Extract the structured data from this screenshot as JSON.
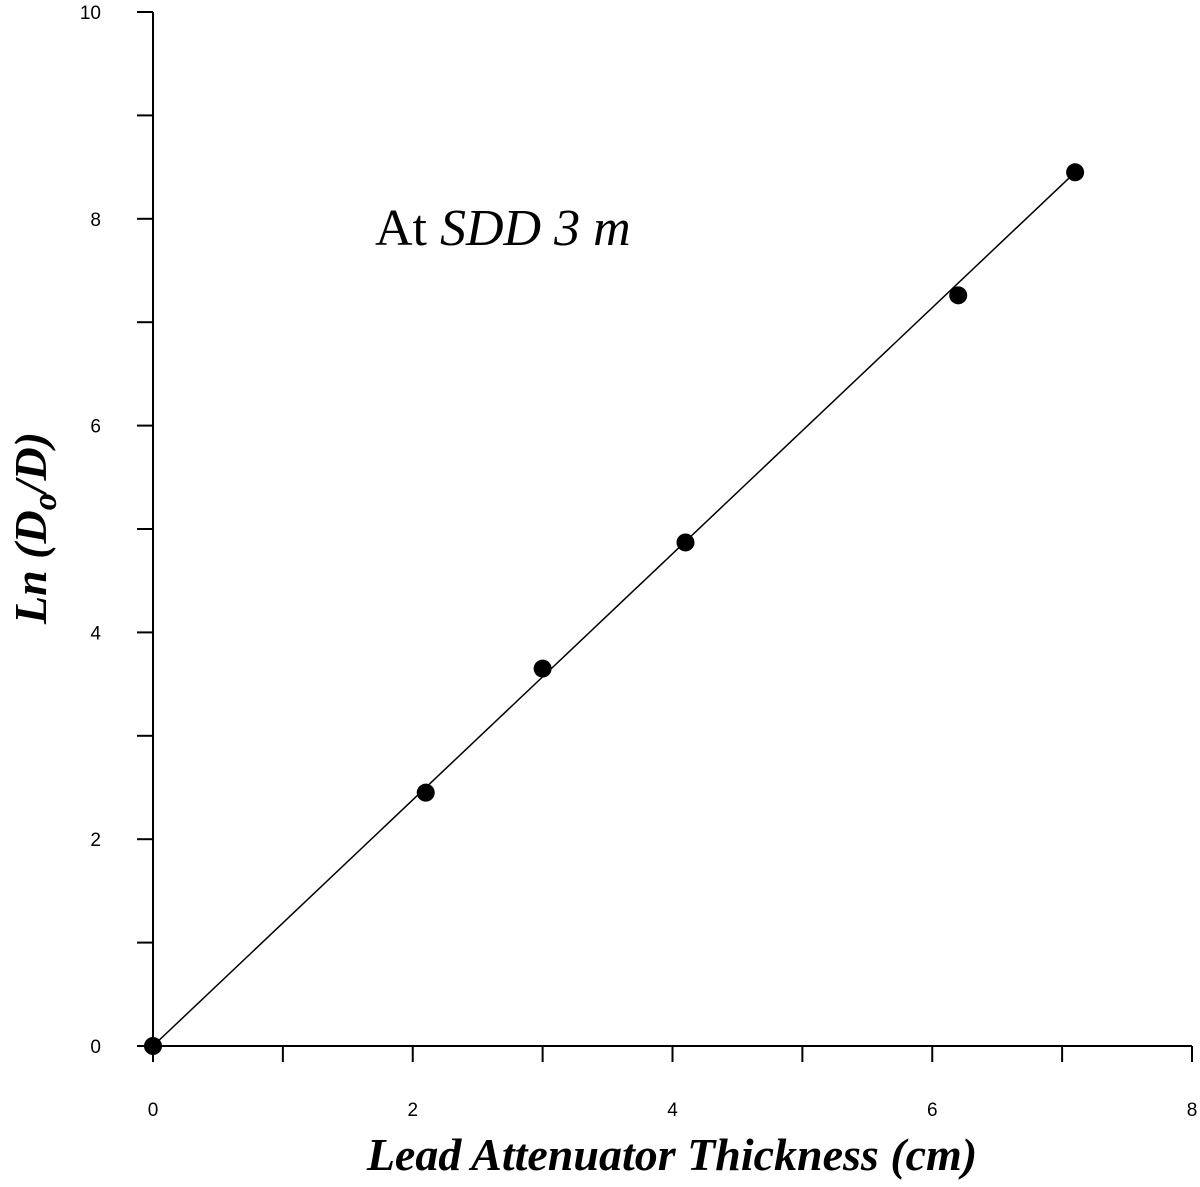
{
  "chart_data": {
    "type": "scatter",
    "xlabel": "Lead Attenuator Thickness (cm)",
    "ylabel": {
      "prefix": "Ln (D",
      "subscript": "o",
      "suffix": "/D)"
    },
    "annotation": {
      "prefix": "At ",
      "italic": "SDD 3 m"
    },
    "xlim": [
      0,
      8
    ],
    "ylim": [
      0,
      10
    ],
    "x_major_ticks": [
      0,
      2,
      4,
      6,
      8
    ],
    "x_minor_ticks": [
      1,
      3,
      5,
      7
    ],
    "y_major_ticks": [
      0,
      2,
      4,
      6,
      8,
      10
    ],
    "y_minor_ticks": [
      1,
      3,
      5,
      7,
      9
    ],
    "grid": false,
    "series": [
      {
        "x": [
          0,
          2.1,
          3.0,
          4.1,
          6.2,
          7.1
        ],
        "y": [
          0,
          2.45,
          3.65,
          4.87,
          7.26,
          8.45
        ]
      }
    ],
    "fit_line": {
      "x": [
        0,
        7.1
      ],
      "y": [
        0,
        8.45
      ]
    }
  }
}
